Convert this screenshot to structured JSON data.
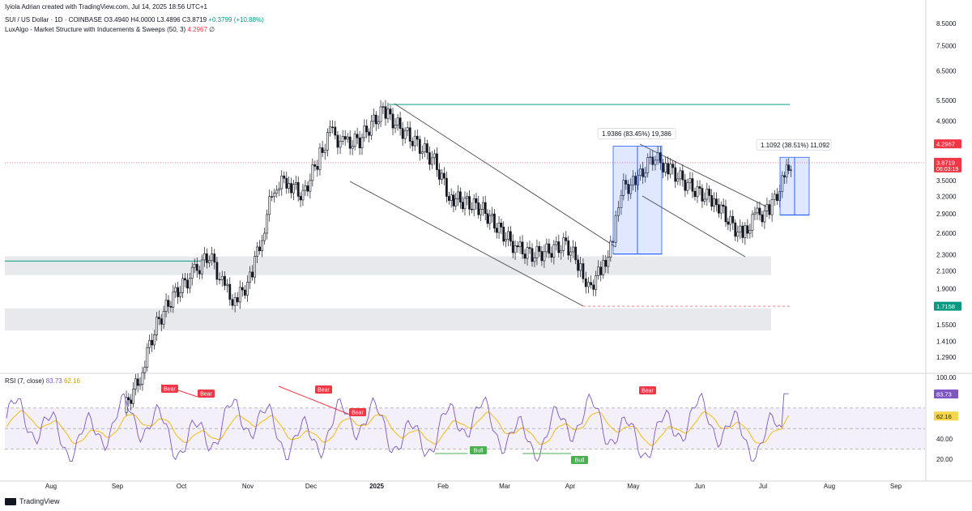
{
  "header": {
    "credit": "Iyiola Adrian created with TradingView.com, Jul 14, 2025 18:56 UTC+1",
    "symbol": "SUI / US Dollar · 1D · COINBASE",
    "open": "O3.4940",
    "high": "H4.0000",
    "low": "L3.4896",
    "close": "C3.8719",
    "change": "+0.3799 (+10.88%)",
    "indicator": "LuxAlgo - Market Structure with Inducements & Sweeps (50, 3)",
    "indicator_value": "4.2967",
    "indicator_suffix": "∅"
  },
  "rsi_header": {
    "label": "RSI (7, close)",
    "value1": "83.73",
    "value2": "62.16"
  },
  "footer": {
    "brand": "TradingView"
  },
  "colors": {
    "up": "#089981",
    "down": "#131722",
    "rsi_line": "#7e57c2",
    "rsi_ma": "#f7b500",
    "bear": "#f23645",
    "bull": "#4caf50",
    "box": "#2962ff"
  },
  "chart_data": {
    "type": "candlestick",
    "title": "SUI / US Dollar · 1D · COINBASE",
    "price_scale": "log",
    "price_ticks": [
      "8.5000",
      "7.5000",
      "6.5000",
      "5.5000",
      "4.9000",
      "4.2967",
      "3.8719",
      "3.5000",
      "3.2000",
      "2.9000",
      "2.6000",
      "2.3000",
      "2.1000",
      "1.9000",
      "1.7158",
      "1.5500",
      "1.4100",
      "1.2900"
    ],
    "price_badges": [
      {
        "value": "4.2967",
        "color": "#f23645"
      },
      {
        "value": "3.8719",
        "sub": "06:03:19",
        "color": "#f23645"
      },
      {
        "value": "1.7158",
        "color": "#089981"
      }
    ],
    "x_ticks": [
      "Aug",
      "Sep",
      "Oct",
      "Nov",
      "Dec",
      "2025",
      "Feb",
      "Mar",
      "Apr",
      "May",
      "Jun",
      "Jul",
      "Aug",
      "Sep"
    ],
    "weekly_close_series": [
      {
        "x": "Jul 28",
        "y": 0.85
      },
      {
        "x": "Aug 5",
        "y": 0.72
      },
      {
        "x": "Aug 19",
        "y": 0.95
      },
      {
        "x": "Sep 2",
        "y": 0.9
      },
      {
        "x": "Sep 12",
        "y": 1.15
      },
      {
        "x": "Sep 20",
        "y": 1.55
      },
      {
        "x": "Sep 28",
        "y": 1.82
      },
      {
        "x": "Oct 6",
        "y": 2.05
      },
      {
        "x": "Oct 14",
        "y": 2.3
      },
      {
        "x": "Oct 20",
        "y": 1.95
      },
      {
        "x": "Oct 26",
        "y": 1.75
      },
      {
        "x": "Nov 2",
        "y": 2.0
      },
      {
        "x": "Nov 8",
        "y": 2.55
      },
      {
        "x": "Nov 14",
        "y": 3.4
      },
      {
        "x": "Nov 20",
        "y": 3.5
      },
      {
        "x": "Nov 28",
        "y": 3.2
      },
      {
        "x": "Dec 4",
        "y": 3.9
      },
      {
        "x": "Dec 10",
        "y": 4.6
      },
      {
        "x": "Dec 16",
        "y": 4.3
      },
      {
        "x": "Dec 24",
        "y": 4.4
      },
      {
        "x": "Jan 4",
        "y": 5.2
      },
      {
        "x": "Jan 12",
        "y": 4.7
      },
      {
        "x": "Jan 20",
        "y": 4.3
      },
      {
        "x": "Jan 28",
        "y": 3.9
      },
      {
        "x": "Feb 4",
        "y": 3.2
      },
      {
        "x": "Feb 12",
        "y": 3.1
      },
      {
        "x": "Feb 20",
        "y": 3.0
      },
      {
        "x": "Feb 28",
        "y": 2.7
      },
      {
        "x": "Mar 6",
        "y": 2.4
      },
      {
        "x": "Mar 14",
        "y": 2.3
      },
      {
        "x": "Mar 22",
        "y": 2.35
      },
      {
        "x": "Mar 30",
        "y": 2.45
      },
      {
        "x": "Apr 6",
        "y": 2.15
      },
      {
        "x": "Apr 10",
        "y": 1.9
      },
      {
        "x": "Apr 16",
        "y": 2.1
      },
      {
        "x": "Apr 22",
        "y": 2.45
      },
      {
        "x": "Apr 26",
        "y": 3.35
      },
      {
        "x": "May 2",
        "y": 3.45
      },
      {
        "x": "May 10",
        "y": 4.0
      },
      {
        "x": "May 16",
        "y": 3.8
      },
      {
        "x": "May 24",
        "y": 3.5
      },
      {
        "x": "Jun 1",
        "y": 3.25
      },
      {
        "x": "Jun 8",
        "y": 3.15
      },
      {
        "x": "Jun 16",
        "y": 2.75
      },
      {
        "x": "Jun 22",
        "y": 2.55
      },
      {
        "x": "Jun 28",
        "y": 2.85
      },
      {
        "x": "Jul 4",
        "y": 2.95
      },
      {
        "x": "Jul 10",
        "y": 3.45
      },
      {
        "x": "Jul 14",
        "y": 3.87
      }
    ],
    "zones": [
      {
        "from": 2.05,
        "to": 2.28,
        "color": "#e8e9ec"
      },
      {
        "from": 1.5,
        "to": 1.7,
        "color": "#e8e9ec"
      }
    ],
    "measurements": [
      {
        "label": "1.9386 (83.45%) 19,386",
        "from": 2.31,
        "to": 4.25
      },
      {
        "label": "1.1092 (38.51%) 11,092",
        "from": 2.88,
        "to": 3.99
      }
    ],
    "rsi": {
      "name": "RSI (7, close)",
      "ticks": [
        "100.00",
        "83.73",
        "62.16",
        "40.00",
        "20.00"
      ],
      "levels": [
        70,
        30
      ],
      "divergence_labels": [
        "Bear",
        "Bear",
        "Bear",
        "Bear",
        "Bear",
        "Bull",
        "Bull"
      ]
    }
  }
}
